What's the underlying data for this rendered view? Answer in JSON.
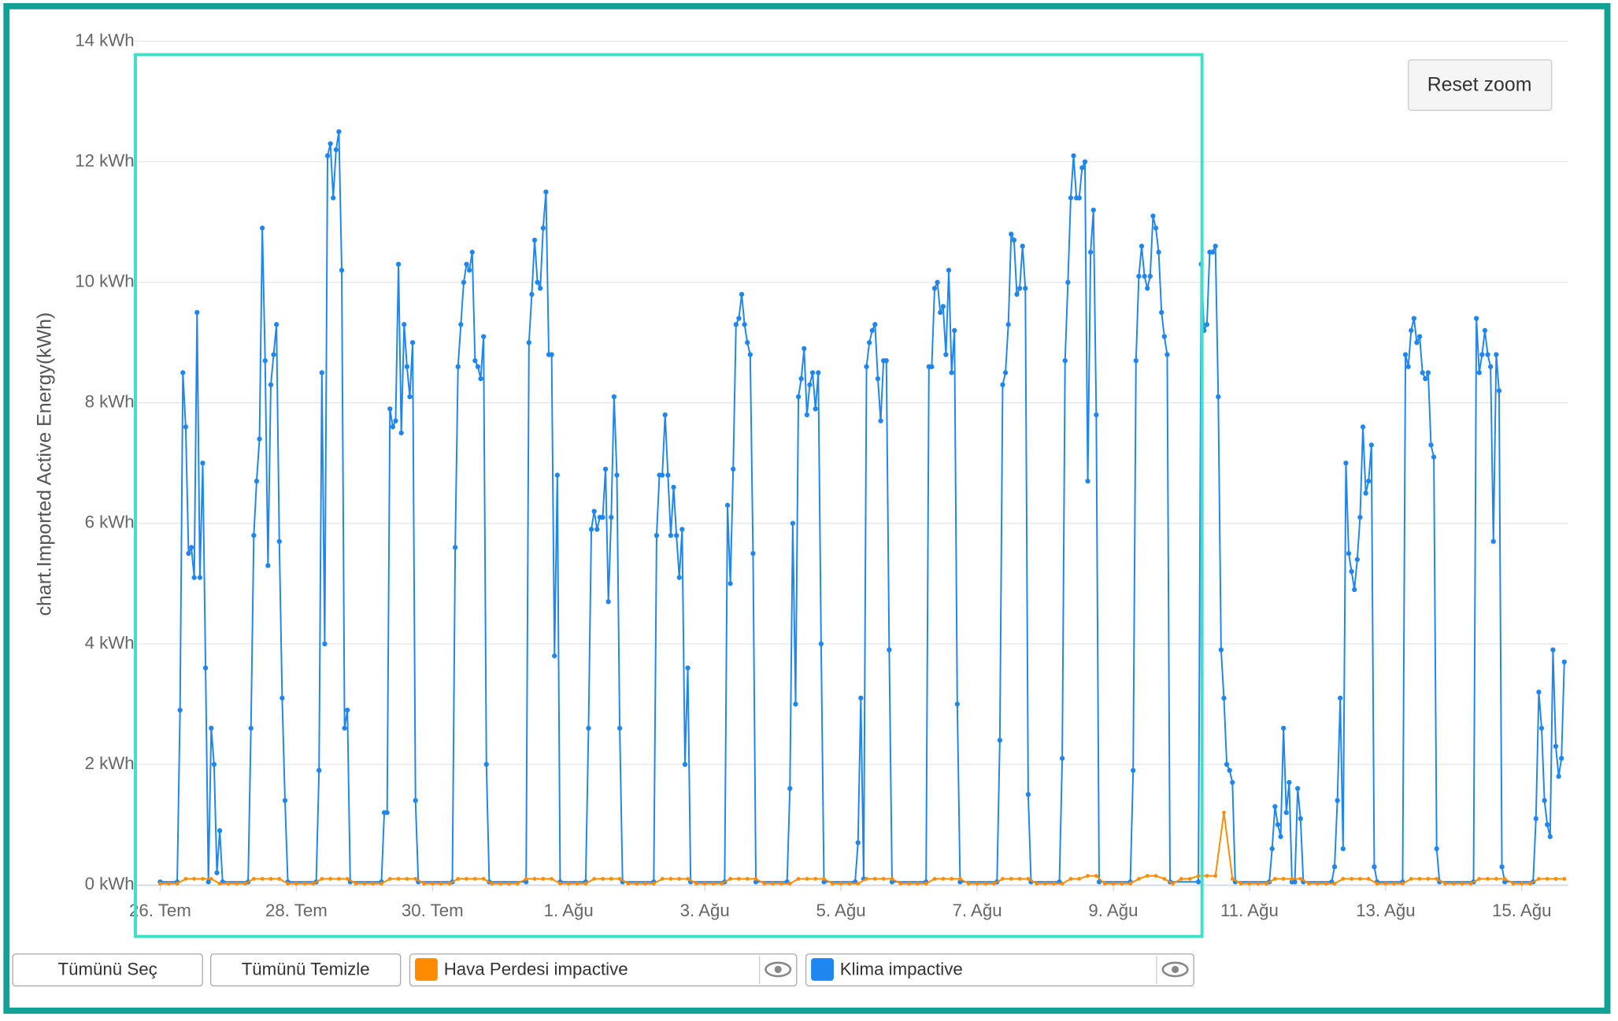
{
  "chart_data": {
    "type": "line",
    "ylabel": "chart.Imported Active Energy(kWh)",
    "ylim": [
      0,
      14
    ],
    "yticks": [
      {
        "value": 0,
        "label": "0 kWh"
      },
      {
        "value": 2,
        "label": "2 kWh"
      },
      {
        "value": 4,
        "label": "4 kWh"
      },
      {
        "value": 6,
        "label": "6 kWh"
      },
      {
        "value": 8,
        "label": "8 kWh"
      },
      {
        "value": 10,
        "label": "10 kWh"
      },
      {
        "value": 12,
        "label": "12 kWh"
      },
      {
        "value": 14,
        "label": "14 kWh"
      }
    ],
    "xlim": [
      -2,
      496
    ],
    "xticks": [
      {
        "value": 0,
        "label": "26. Tem"
      },
      {
        "value": 48,
        "label": "28. Tem"
      },
      {
        "value": 96,
        "label": "30. Tem"
      },
      {
        "value": 144,
        "label": "1. Ağu"
      },
      {
        "value": 192,
        "label": "3. Ağu"
      },
      {
        "value": 240,
        "label": "5. Ağu"
      },
      {
        "value": 288,
        "label": "7. Ağu"
      },
      {
        "value": 336,
        "label": "9. Ağu"
      },
      {
        "value": 384,
        "label": "11. Ağu"
      },
      {
        "value": 432,
        "label": "13. Ağu"
      },
      {
        "value": 480,
        "label": "15. Ağu"
      }
    ],
    "grid": true,
    "series": [
      {
        "name": "Hava Perdesi impactive",
        "color": "#ff8c00",
        "x": [
          0,
          3,
          6,
          9,
          12,
          15,
          18,
          21,
          24,
          27,
          30,
          33,
          36,
          39,
          42,
          45,
          48,
          51,
          54,
          57,
          60,
          63,
          66,
          69,
          72,
          75,
          78,
          81,
          84,
          87,
          90,
          93,
          96,
          99,
          102,
          105,
          108,
          111,
          114,
          117,
          120,
          123,
          126,
          129,
          132,
          135,
          138,
          141,
          144,
          147,
          150,
          153,
          156,
          159,
          162,
          165,
          168,
          171,
          174,
          177,
          180,
          183,
          186,
          189,
          192,
          195,
          198,
          201,
          204,
          207,
          210,
          213,
          216,
          219,
          222,
          225,
          228,
          231,
          234,
          237,
          240,
          243,
          246,
          249,
          252,
          255,
          258,
          261,
          264,
          267,
          270,
          273,
          276,
          279,
          282,
          285,
          288,
          291,
          294,
          297,
          300,
          303,
          306,
          309,
          312,
          315,
          318,
          321,
          324,
          327,
          330,
          333,
          336,
          339,
          342,
          345,
          348,
          351,
          354,
          357,
          360,
          363,
          366,
          369,
          372,
          375,
          378,
          381,
          384,
          387,
          390,
          393,
          396,
          399,
          402,
          405,
          408,
          411,
          414,
          417,
          420,
          423,
          426,
          429,
          432,
          435,
          438,
          441,
          444,
          447,
          450,
          453,
          456,
          459,
          462,
          465,
          468,
          471,
          474,
          477,
          480,
          483,
          486,
          489,
          492,
          495
        ],
        "values": [
          0.02,
          0.02,
          0.02,
          0.1,
          0.1,
          0.1,
          0.1,
          0.02,
          0.02,
          0.02,
          0.02,
          0.1,
          0.1,
          0.1,
          0.1,
          0.02,
          0.02,
          0.02,
          0.02,
          0.1,
          0.1,
          0.1,
          0.1,
          0.02,
          0.02,
          0.02,
          0.02,
          0.1,
          0.1,
          0.1,
          0.1,
          0.02,
          0.02,
          0.02,
          0.02,
          0.1,
          0.1,
          0.1,
          0.1,
          0.02,
          0.02,
          0.02,
          0.02,
          0.1,
          0.1,
          0.1,
          0.1,
          0.02,
          0.02,
          0.02,
          0.02,
          0.1,
          0.1,
          0.1,
          0.1,
          0.02,
          0.02,
          0.02,
          0.02,
          0.1,
          0.1,
          0.1,
          0.1,
          0.02,
          0.02,
          0.02,
          0.02,
          0.1,
          0.1,
          0.1,
          0.1,
          0.02,
          0.02,
          0.02,
          0.02,
          0.1,
          0.1,
          0.1,
          0.1,
          0.02,
          0.02,
          0.02,
          0.02,
          0.1,
          0.1,
          0.1,
          0.1,
          0.02,
          0.02,
          0.02,
          0.02,
          0.1,
          0.1,
          0.1,
          0.1,
          0.02,
          0.02,
          0.02,
          0.02,
          0.1,
          0.1,
          0.1,
          0.1,
          0.02,
          0.02,
          0.02,
          0.02,
          0.1,
          0.1,
          0.15,
          0.15,
          0.02,
          0.02,
          0.02,
          0.02,
          0.1,
          0.15,
          0.15,
          0.1,
          0.02,
          0.1,
          0.1,
          0.15,
          0.15,
          0.15,
          1.2,
          0.1,
          0.02,
          0.02,
          0.02,
          0.02,
          0.1,
          0.1,
          0.1,
          0.1,
          0.02,
          0.02,
          0.02,
          0.02,
          0.1,
          0.1,
          0.1,
          0.1,
          0.02,
          0.02,
          0.02,
          0.02,
          0.1,
          0.1,
          0.1,
          0.1,
          0.02,
          0.02,
          0.02,
          0.02,
          0.1,
          0.1,
          0.1,
          0.1,
          0.02,
          0.02,
          0.02,
          0.1,
          0.1,
          0.1,
          0.1
        ]
      },
      {
        "name": "Klima impactive",
        "color": "#1f86ef",
        "x": [
          0,
          6,
          7,
          8,
          9,
          10,
          11,
          12,
          13,
          14,
          15,
          16,
          17,
          18,
          19,
          20,
          21,
          22,
          31,
          32,
          33,
          34,
          35,
          36,
          37,
          38,
          39,
          40,
          41,
          42,
          43,
          44,
          45,
          55,
          56,
          57,
          58,
          59,
          60,
          61,
          62,
          63,
          64,
          65,
          66,
          67,
          78,
          79,
          80,
          81,
          82,
          83,
          84,
          85,
          86,
          87,
          88,
          89,
          90,
          91,
          103,
          104,
          105,
          106,
          107,
          108,
          109,
          110,
          111,
          112,
          113,
          114,
          115,
          116,
          129,
          130,
          131,
          132,
          133,
          134,
          135,
          136,
          137,
          138,
          139,
          140,
          141,
          150,
          151,
          152,
          153,
          154,
          155,
          156,
          157,
          158,
          159,
          160,
          161,
          162,
          163,
          174,
          175,
          176,
          177,
          178,
          179,
          180,
          181,
          182,
          183,
          184,
          185,
          186,
          187,
          199,
          200,
          201,
          202,
          203,
          204,
          205,
          206,
          207,
          208,
          209,
          210,
          221,
          222,
          223,
          224,
          225,
          226,
          227,
          228,
          229,
          230,
          231,
          232,
          233,
          234,
          245,
          246,
          247,
          248,
          249,
          250,
          251,
          252,
          253,
          254,
          255,
          256,
          257,
          258,
          270,
          271,
          272,
          273,
          274,
          275,
          276,
          277,
          278,
          279,
          280,
          281,
          282,
          295,
          296,
          297,
          298,
          299,
          300,
          301,
          302,
          303,
          304,
          305,
          306,
          307,
          317,
          318,
          319,
          320,
          321,
          322,
          323,
          324,
          325,
          326,
          327,
          328,
          329,
          330,
          331,
          342,
          343,
          344,
          345,
          346,
          347,
          348,
          349,
          350,
          351,
          352,
          353,
          354,
          355,
          356,
          366,
          367,
          368,
          369,
          370,
          371,
          372,
          373,
          374,
          375,
          376,
          377,
          378,
          379,
          391,
          392,
          393,
          394,
          395,
          396,
          397,
          398,
          399,
          400,
          401,
          402,
          403,
          413,
          414,
          415,
          416,
          417,
          418,
          419,
          420,
          421,
          422,
          423,
          424,
          425,
          426,
          427,
          428,
          429,
          438,
          439,
          440,
          441,
          442,
          443,
          444,
          445,
          446,
          447,
          448,
          449,
          450,
          451,
          463,
          464,
          465,
          466,
          467,
          468,
          469,
          470,
          471,
          472,
          473,
          474,
          484,
          485,
          486,
          487,
          488,
          489,
          490,
          491,
          492,
          493,
          494,
          495
        ],
        "values": [
          0.05,
          0.05,
          2.9,
          8.5,
          7.6,
          5.5,
          5.6,
          5.1,
          9.5,
          5.1,
          7.0,
          3.6,
          0.05,
          2.6,
          2.0,
          0.2,
          0.9,
          0.05,
          0.05,
          2.6,
          5.8,
          6.7,
          7.4,
          10.9,
          8.7,
          5.3,
          8.3,
          8.8,
          9.3,
          5.7,
          3.1,
          1.4,
          0.05,
          0.05,
          1.9,
          8.5,
          4.0,
          12.1,
          12.3,
          11.4,
          12.2,
          12.5,
          10.2,
          2.6,
          2.9,
          0.05,
          0.05,
          1.2,
          1.2,
          7.9,
          7.6,
          7.7,
          10.3,
          7.5,
          9.3,
          8.6,
          8.1,
          9.0,
          1.4,
          0.05,
          0.05,
          5.6,
          8.6,
          9.3,
          10.0,
          10.3,
          10.2,
          10.5,
          8.7,
          8.6,
          8.4,
          9.1,
          2.0,
          0.05,
          0.05,
          9.0,
          9.8,
          10.7,
          10.0,
          9.9,
          10.9,
          11.5,
          8.8,
          8.8,
          3.8,
          6.8,
          0.05,
          0.05,
          2.6,
          5.9,
          6.2,
          5.9,
          6.1,
          6.1,
          6.9,
          4.7,
          6.1,
          8.1,
          6.8,
          2.6,
          0.05,
          0.05,
          5.8,
          6.8,
          6.8,
          7.8,
          6.8,
          5.8,
          6.6,
          5.8,
          5.1,
          5.9,
          2.0,
          3.6,
          0.05,
          0.05,
          6.3,
          5.0,
          6.9,
          9.3,
          9.4,
          9.8,
          9.3,
          9.0,
          8.8,
          5.5,
          0.05,
          0.05,
          1.6,
          6.0,
          3.0,
          8.1,
          8.4,
          8.9,
          7.8,
          8.3,
          8.5,
          7.9,
          8.5,
          4.0,
          0.05,
          0.05,
          0.7,
          3.1,
          0.1,
          8.6,
          9.0,
          9.2,
          9.3,
          8.4,
          7.7,
          8.7,
          8.7,
          3.9,
          0.05,
          0.05,
          8.6,
          8.6,
          9.9,
          10.0,
          9.5,
          9.6,
          8.8,
          10.2,
          8.5,
          9.2,
          3.0,
          0.05,
          0.05,
          2.4,
          8.3,
          8.5,
          9.3,
          10.8,
          10.7,
          9.8,
          9.9,
          10.6,
          9.9,
          1.5,
          0.05,
          0.05,
          2.1,
          8.7,
          10.0,
          11.4,
          12.1,
          11.4,
          11.4,
          11.9,
          12.0,
          6.7,
          10.5,
          11.2,
          7.8,
          0.05,
          0.05,
          1.9,
          8.7,
          10.1,
          10.6,
          10.1,
          9.9,
          10.1,
          11.1,
          10.9,
          10.5,
          9.5,
          9.1,
          8.8,
          0.05,
          0.05,
          10.3,
          9.2,
          9.3,
          10.5,
          10.5,
          10.6,
          8.1,
          3.9,
          3.1,
          2.0,
          1.9,
          1.7,
          0.05,
          0.05,
          0.6,
          1.3,
          1.0,
          0.8,
          2.6,
          1.2,
          1.7,
          0.05,
          0.05,
          1.6,
          1.1,
          0.05,
          0.05,
          0.3,
          1.4,
          3.1,
          0.6,
          7.0,
          5.5,
          5.2,
          4.9,
          5.4,
          6.1,
          7.6,
          6.5,
          6.7,
          7.3,
          0.3,
          0.05,
          0.05,
          8.8,
          8.6,
          9.2,
          9.4,
          9.0,
          9.1,
          8.5,
          8.4,
          8.5,
          7.3,
          7.1,
          0.6,
          0.05,
          0.05,
          9.4,
          8.5,
          8.8,
          9.2,
          8.8,
          8.6,
          5.7,
          8.8,
          8.2,
          0.3,
          0.05,
          0.05,
          1.1,
          3.2,
          2.6,
          1.4,
          1.0,
          0.8,
          3.9,
          2.3,
          1.8,
          2.1,
          3.7
        ]
      }
    ]
  },
  "controls": {
    "reset_zoom": "Reset zoom",
    "select_all": "Tümünü Seç",
    "clear_all": "Tümünü Temizle"
  }
}
